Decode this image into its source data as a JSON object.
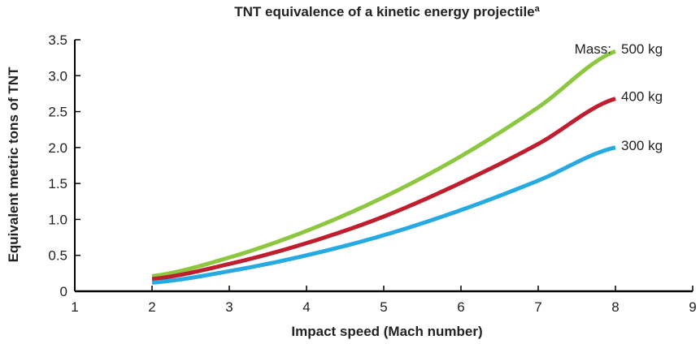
{
  "chart_data": {
    "type": "line",
    "title": "TNT equivalence of a kinetic energy projectile",
    "title_superscript": "a",
    "xlabel": "Impact speed (Mach number)",
    "ylabel": "Equivalent metric tons of TNT",
    "xlim": [
      1,
      9
    ],
    "ylim": [
      0,
      3.5
    ],
    "x_ticks": [
      "1",
      "2",
      "3",
      "4",
      "5",
      "6",
      "7",
      "8",
      "9"
    ],
    "y_ticks": [
      "0",
      "0.5",
      "1.0",
      "1.5",
      "2.0",
      "2.5",
      "3.0",
      "3.5"
    ],
    "legend_prefix": "Mass:",
    "grid": false,
    "x": [
      2,
      3,
      4,
      5,
      6,
      7,
      8
    ],
    "series": [
      {
        "name": "500 kg",
        "color": "#8dc63f",
        "values": [
          0.21,
          0.47,
          0.84,
          1.31,
          1.88,
          2.56,
          3.34
        ]
      },
      {
        "name": "400 kg",
        "color": "#be1e2d",
        "values": [
          0.17,
          0.38,
          0.67,
          1.04,
          1.51,
          2.05,
          2.68
        ]
      },
      {
        "name": "300 kg",
        "color": "#27aae1",
        "values": [
          0.12,
          0.28,
          0.5,
          0.78,
          1.13,
          1.54,
          2.0
        ]
      }
    ]
  }
}
